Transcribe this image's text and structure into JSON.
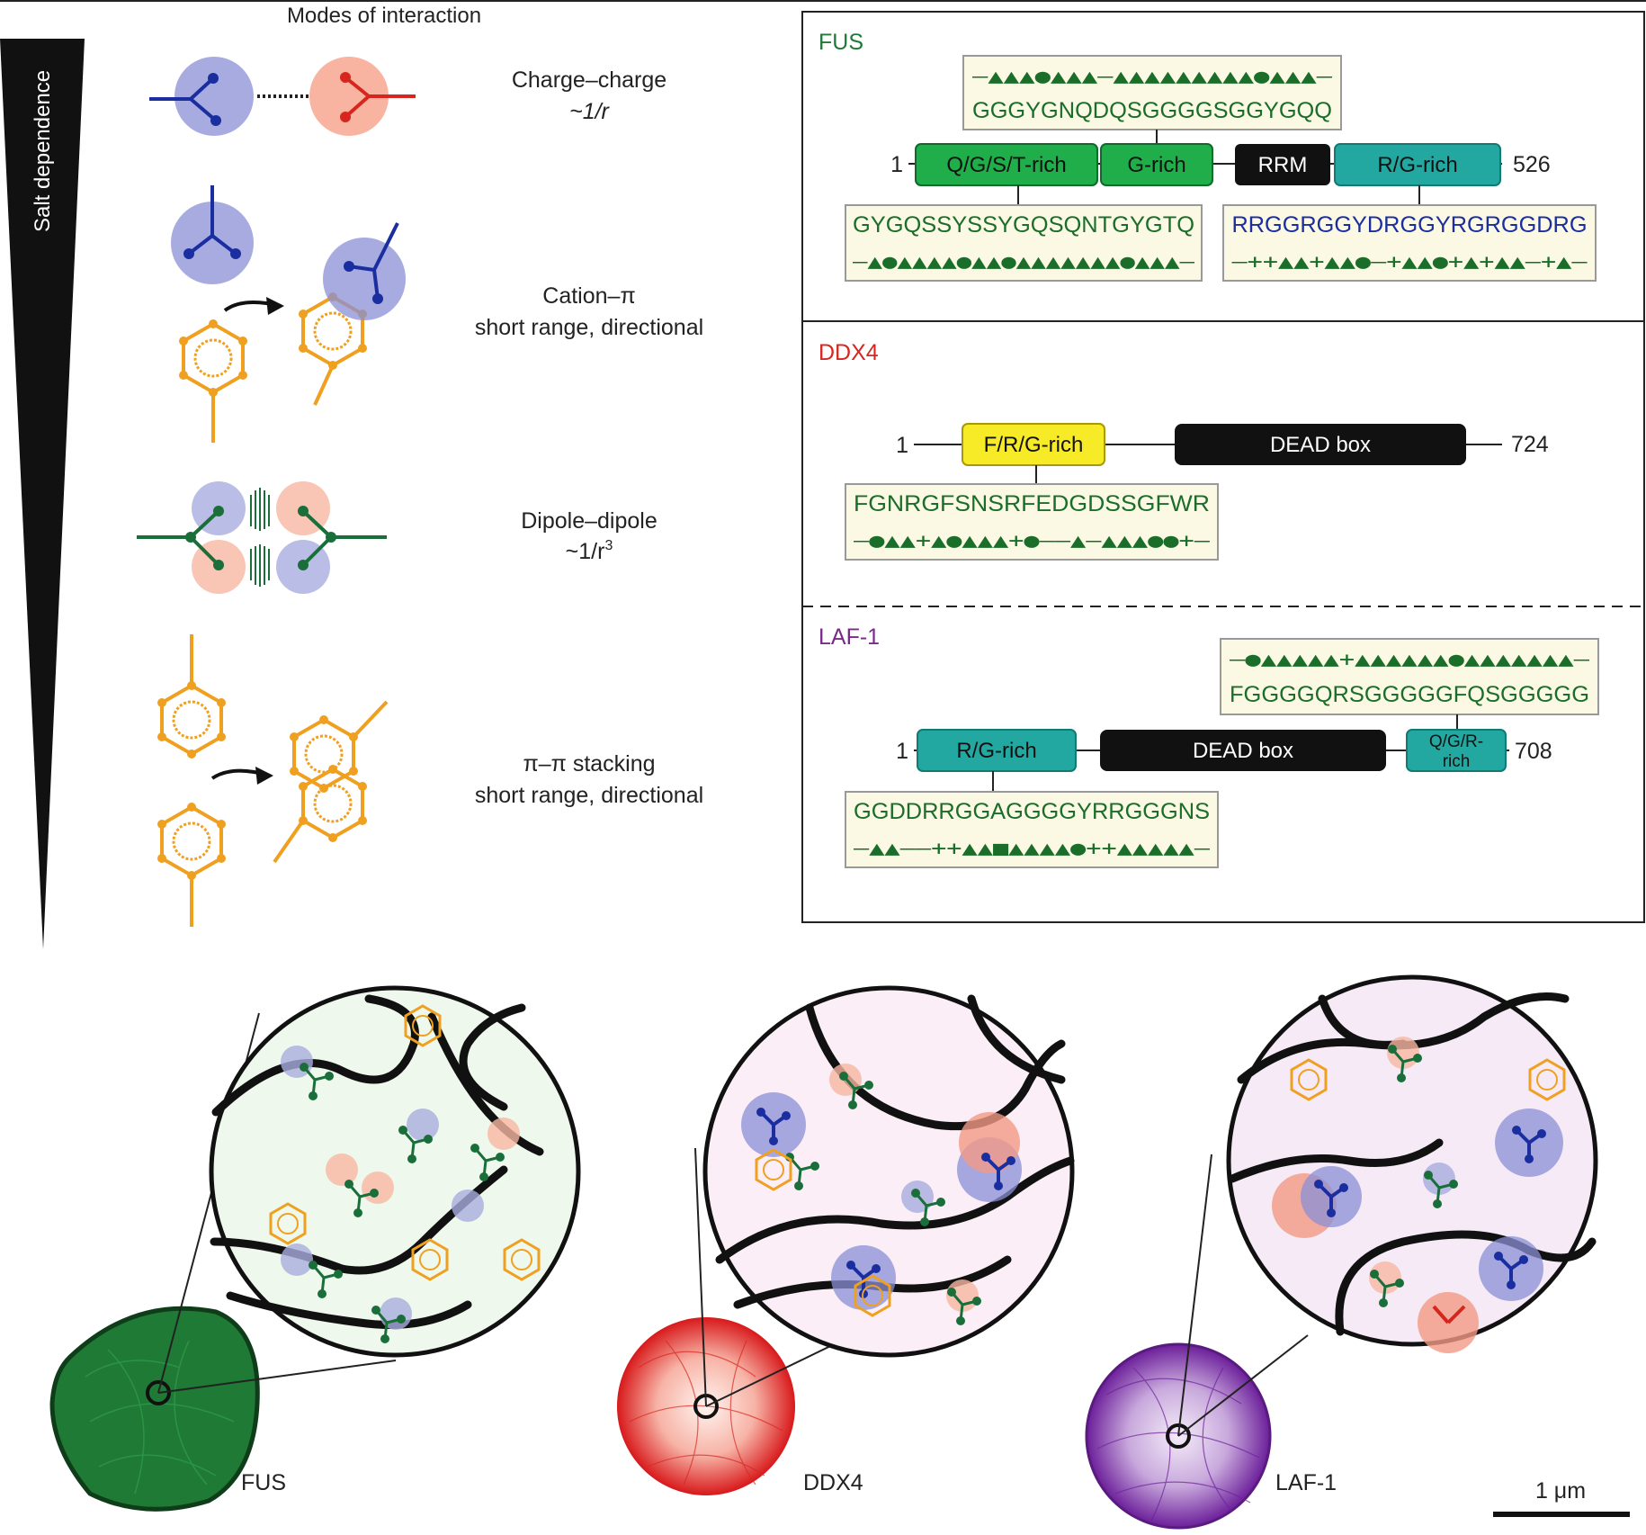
{
  "header": {
    "modes_title": "Modes of interaction",
    "salt_label": "Salt dependence"
  },
  "modes": [
    {
      "name": "Charge–charge",
      "detail": "~1/r"
    },
    {
      "name": "Cation–π",
      "detail": "short range, directional"
    },
    {
      "name": "Dipole–dipole",
      "detail_prefix": "~1/r",
      "detail_sup": "3"
    },
    {
      "name": "π–π stacking",
      "detail": "short range, directional"
    }
  ],
  "colors": {
    "fus": "#1f7a3a",
    "ddx4": "#d7261e",
    "laf1": "#7b2a8c",
    "gly": "#1a6e2a",
    "pos": "#1a2ea0",
    "neg": "#d7261e",
    "aro": "#f0a020",
    "box_bg": "#fbf8e4",
    "green_dom": "#1fae4a",
    "teal_dom": "#22a8a0",
    "yellow_dom": "#f7ea26"
  },
  "fus": {
    "name": "FUS",
    "start": "1",
    "end": "526",
    "domains": [
      "Q/G/S/T-rich",
      "G-rich",
      "RRM",
      "R/G-rich"
    ],
    "top_symbols": "–▲▲▲●▲▲▲–▲▲▲▲▲▲▲▲▲●▲▲▲–",
    "top_seq": "GGGYGNQDQSGGGGSGGYGQQ",
    "left_seq": "GYGQSSYSSYGQSQNTGYGTQ",
    "left_symbols": "–▲●▲▲▲▲●▲▲●▲▲▲▲▲▲▲●▲▲▲–",
    "right_seq": "RRGGRGGYDRGGYRGRGGDRG",
    "right_symbols": "–++▲▲+▲▲●–+▲▲●+▲+▲▲–+▲–"
  },
  "ddx4": {
    "name": "DDX4",
    "start": "1",
    "end": "724",
    "domains": [
      "F/R/G-rich",
      "DEAD box"
    ],
    "seq": "FGNRGFSNSRFEDGDSSGFWR",
    "symbols": "–●▲▲+▲●▲▲▲+●––▲–▲▲▲●●+–"
  },
  "laf1": {
    "name": "LAF-1",
    "start": "1",
    "end": "708",
    "domains": [
      "R/G-rich",
      "DEAD box",
      "Q/G/R-",
      "rich"
    ],
    "top_symbols": "–●▲▲▲▲▲+▲▲▲▲▲▲●▲▲▲▲▲▲▲–",
    "top_seq": "FGGGGQRSGGGGGFQSGGGGG",
    "bottom_seq": "GGDDRRGGAGGGGYRRGGGNS",
    "bottom_symbols": "–▲▲––++▲▲■▲▲▲▲●++▲▲▲▲▲–"
  },
  "droplets": {
    "labels": [
      "FUS",
      "DDX4",
      "LAF-1"
    ],
    "scale_bar": "1 μm"
  }
}
